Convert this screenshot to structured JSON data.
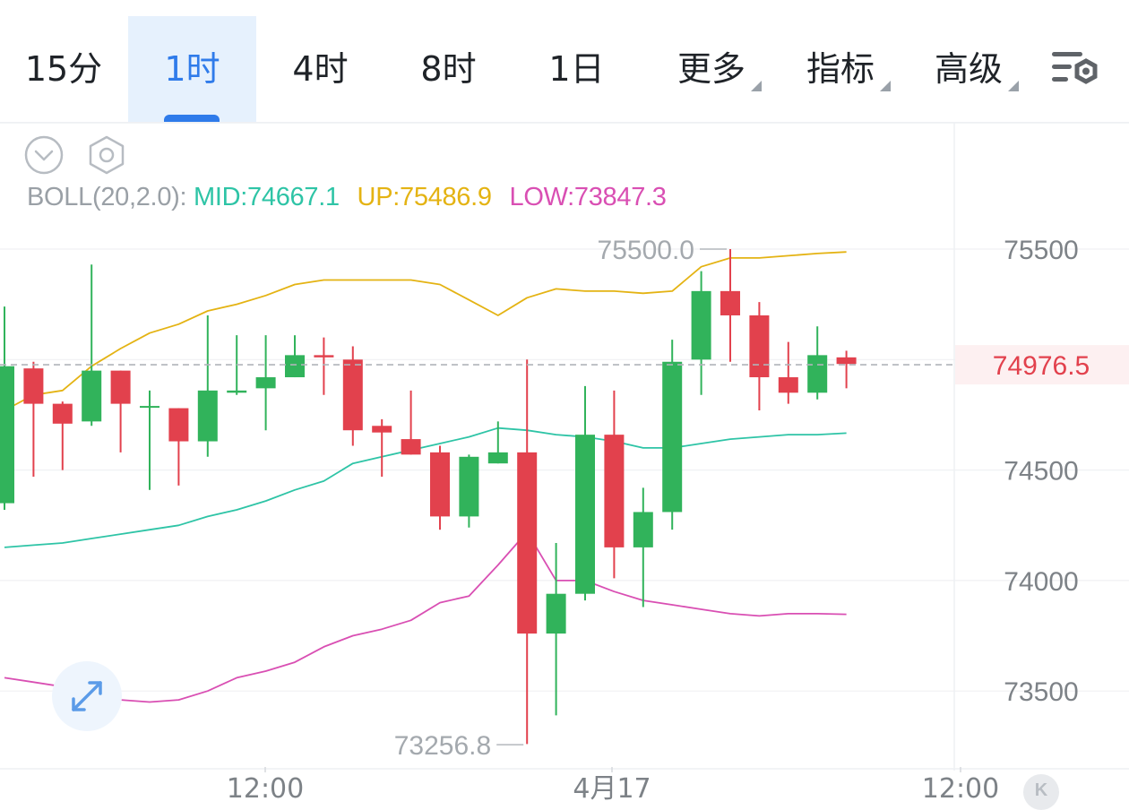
{
  "tabs": [
    {
      "label": "15分",
      "active": false,
      "dropdown": false
    },
    {
      "label": "1时",
      "active": true,
      "dropdown": false
    },
    {
      "label": "4时",
      "active": false,
      "dropdown": false
    },
    {
      "label": "8时",
      "active": false,
      "dropdown": false
    },
    {
      "label": "1日",
      "active": false,
      "dropdown": false
    },
    {
      "label": "更多",
      "active": false,
      "dropdown": true
    },
    {
      "label": "指标",
      "active": false,
      "dropdown": true
    },
    {
      "label": "高级",
      "active": false,
      "dropdown": true
    }
  ],
  "icons": {
    "settings": "chart-settings-icon",
    "collapse": "collapse-chevron-icon",
    "indicator_settings": "hexagon-settings-icon",
    "expand": "expand-arrows-icon",
    "kline_badge": "k-badge-icon"
  },
  "indicator": {
    "label": "BOLL(20,2.0):",
    "mid": "MID:74667.1",
    "up": "UP:75486.9",
    "low": "LOW:73847.3"
  },
  "kline_badge": {
    "label": "K"
  },
  "colors": {
    "accent": "#2f7bea",
    "up_candle": "#31b35b",
    "down_candle": "#e2414d",
    "boll_mid": "#2ec4a6",
    "boll_up": "#e4b313",
    "boll_low": "#d94fb3",
    "price_line": "#b0b4b9"
  },
  "chart_data": {
    "type": "candlestick",
    "y_axis": {
      "ticks": [
        75500,
        74500,
        74000,
        73500
      ],
      "tick_labels": [
        "75500",
        "74500",
        "74000",
        "73500"
      ]
    },
    "x_axis": {
      "tick_labels": [
        "12:00",
        "4月17",
        "12:00"
      ]
    },
    "current_price": 74976.5,
    "current_price_label": "74976.5",
    "high_annotation": {
      "value": 75500.0,
      "label": "75500.0"
    },
    "low_annotation": {
      "value": 73256.8,
      "label": "73256.8"
    },
    "candles": [
      {
        "o": 74350,
        "c": 74970,
        "h": 75240,
        "l": 74320
      },
      {
        "o": 74960,
        "c": 74800,
        "h": 74990,
        "l": 74470
      },
      {
        "o": 74800,
        "c": 74710,
        "h": 74810,
        "l": 74500
      },
      {
        "o": 74720,
        "c": 74950,
        "h": 75430,
        "l": 74700
      },
      {
        "o": 74950,
        "c": 74800,
        "h": 74950,
        "l": 74580
      },
      {
        "o": 74790,
        "c": 74790,
        "h": 74860,
        "l": 74410
      },
      {
        "o": 74780,
        "c": 74630,
        "h": 74780,
        "l": 74430
      },
      {
        "o": 74630,
        "c": 74860,
        "h": 75200,
        "l": 74560
      },
      {
        "o": 74850,
        "c": 74860,
        "h": 75110,
        "l": 74840
      },
      {
        "o": 74870,
        "c": 74920,
        "h": 75110,
        "l": 74680
      },
      {
        "o": 74920,
        "c": 75020,
        "h": 75110,
        "l": 74920
      },
      {
        "o": 75020,
        "c": 75010,
        "h": 75100,
        "l": 74840
      },
      {
        "o": 75000,
        "c": 74680,
        "h": 75060,
        "l": 74610
      },
      {
        "o": 74700,
        "c": 74670,
        "h": 74730,
        "l": 74470
      },
      {
        "o": 74640,
        "c": 74570,
        "h": 74860,
        "l": 74570
      },
      {
        "o": 74580,
        "c": 74290,
        "h": 74610,
        "l": 74230
      },
      {
        "o": 74290,
        "c": 74560,
        "h": 74570,
        "l": 74240
      },
      {
        "o": 74530,
        "c": 74580,
        "h": 74720,
        "l": 74530
      },
      {
        "o": 74580,
        "c": 73760,
        "h": 75000,
        "l": 73260
      },
      {
        "o": 73760,
        "c": 73940,
        "h": 74170,
        "l": 73390
      },
      {
        "o": 73940,
        "c": 74660,
        "h": 74880,
        "l": 73910
      },
      {
        "o": 74660,
        "c": 74150,
        "h": 74860,
        "l": 74010
      },
      {
        "o": 74150,
        "c": 74310,
        "h": 74420,
        "l": 73880
      },
      {
        "o": 74310,
        "c": 74990,
        "h": 75090,
        "l": 74230
      },
      {
        "o": 75000,
        "c": 75310,
        "h": 75400,
        "l": 74840
      },
      {
        "o": 75310,
        "c": 75200,
        "h": 75500,
        "l": 74990
      },
      {
        "o": 75200,
        "c": 74920,
        "h": 75260,
        "l": 74770
      },
      {
        "o": 74920,
        "c": 74850,
        "h": 75080,
        "l": 74800
      },
      {
        "o": 74850,
        "c": 75020,
        "h": 75150,
        "l": 74820
      },
      {
        "o": 75010,
        "c": 74980,
        "h": 75040,
        "l": 74870
      }
    ],
    "boll_up": [
      74770,
      74840,
      74860,
      74970,
      75050,
      75120,
      75160,
      75220,
      75250,
      75290,
      75340,
      75360,
      75360,
      75360,
      75360,
      75340,
      75270,
      75200,
      75280,
      75320,
      75310,
      75310,
      75300,
      75310,
      75420,
      75460,
      75460,
      75470,
      75480,
      75487
    ],
    "boll_mid": [
      74150,
      74160,
      74170,
      74190,
      74210,
      74230,
      74250,
      74290,
      74320,
      74360,
      74410,
      74450,
      74530,
      74560,
      74590,
      74620,
      74650,
      74690,
      74680,
      74660,
      74650,
      74630,
      74600,
      74600,
      74620,
      74640,
      74650,
      74660,
      74660,
      74667
    ],
    "boll_low": [
      73560,
      73540,
      73520,
      73490,
      73460,
      73450,
      73460,
      73500,
      73560,
      73590,
      73630,
      73700,
      73750,
      73780,
      73820,
      73900,
      73930,
      74070,
      74220,
      74000,
      74000,
      73950,
      73910,
      73890,
      73870,
      73850,
      73840,
      73850,
      73850,
      73847
    ]
  }
}
